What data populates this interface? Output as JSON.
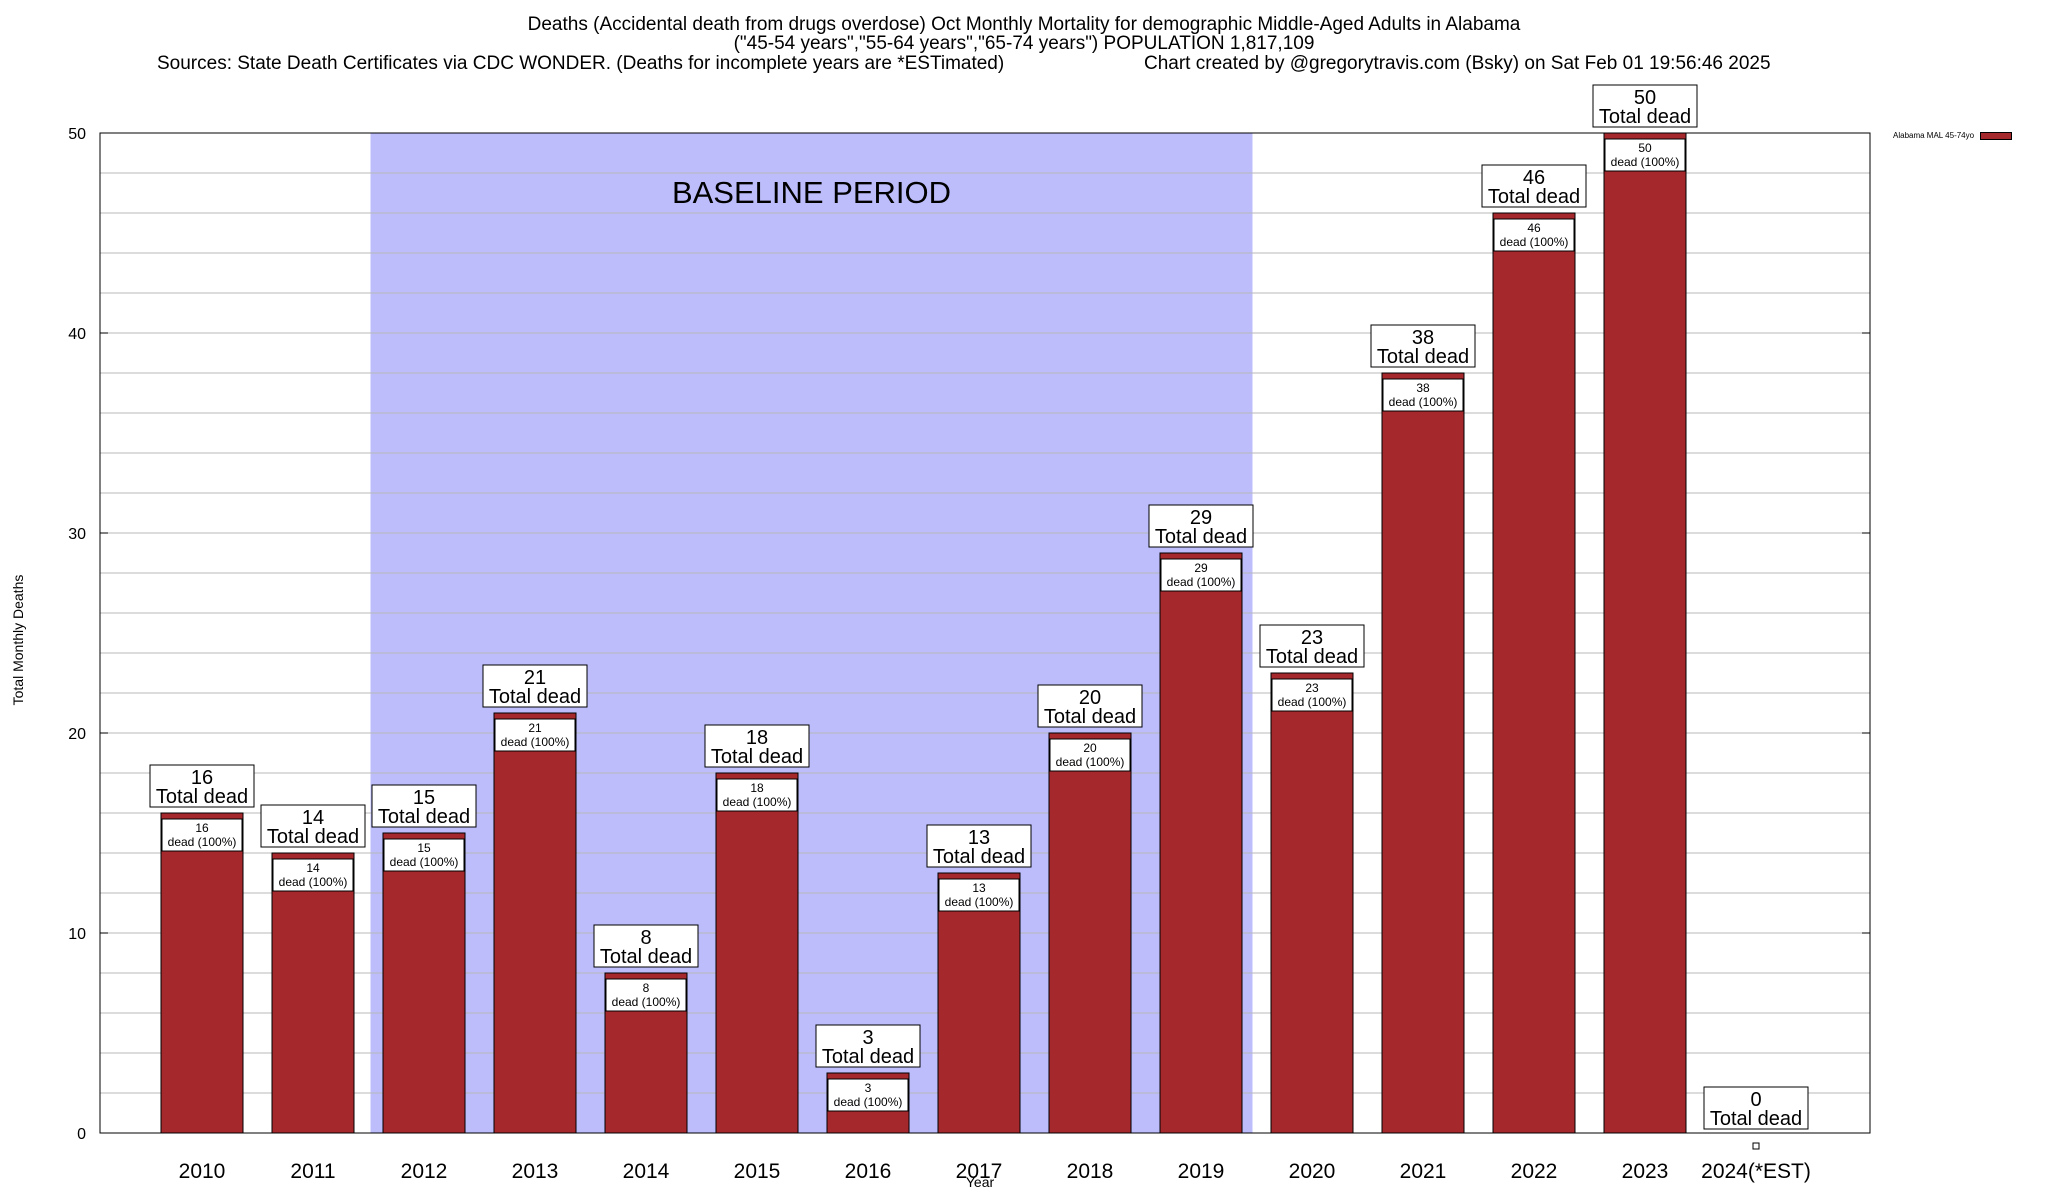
{
  "title": {
    "line1": "Deaths (Accidental death from drugs overdose) Oct Monthly Mortality for demographic Middle-Aged Adults in Alabama",
    "line2": "(\"45-54 years\",\"55-64 years\",\"65-74 years\") POPULATION 1,817,109",
    "sources": "Sources: State Death Certificates via CDC WONDER. (Deaths for incomplete years are *ESTimated)",
    "credit": "Chart created by @gregorytravis.com (Bsky) on Sat Feb 01 19:56:46 2025"
  },
  "legend": {
    "label": "Alabama MAL 45-74yo",
    "color": "#a4282c"
  },
  "chart_data": {
    "type": "bar",
    "title": "Deaths (Accidental death from drugs overdose) Oct Monthly Mortality for demographic Middle-Aged Adults in Alabama",
    "xlabel": "Year",
    "ylabel": "Total Monthly Deaths",
    "ylim": [
      0,
      50
    ],
    "yticks": [
      0,
      10,
      20,
      30,
      40,
      50
    ],
    "categories": [
      "2010",
      "2011",
      "2012",
      "2013",
      "2014",
      "2015",
      "2016",
      "2017",
      "2018",
      "2019",
      "2020",
      "2021",
      "2022",
      "2023",
      "2024(*EST)"
    ],
    "series": [
      {
        "name": "Alabama MAL 45-74yo",
        "values": [
          16,
          14,
          15,
          21,
          8,
          18,
          3,
          13,
          20,
          29,
          23,
          38,
          46,
          50,
          0
        ]
      }
    ],
    "bar_color": "#a4282c",
    "top_label_suffix": "Total dead",
    "inner_label_suffix": "dead (100%)",
    "baseline": {
      "label": "BASELINE PERIOD",
      "from": "2012",
      "to": "2019",
      "color": "#bdbdfc"
    },
    "grid": true,
    "legend_position": "top-right"
  }
}
